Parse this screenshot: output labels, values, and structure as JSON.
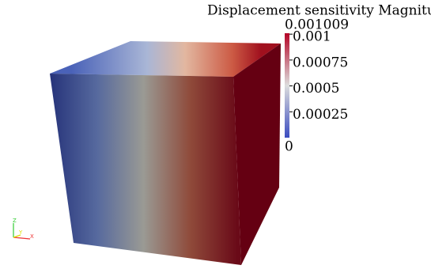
{
  "colorbar": {
    "title": "Displacement sensitivity Magnitude",
    "range": [
      0,
      0.001009
    ],
    "ticks": [
      0.00025,
      0.0005,
      0.00075,
      0.001
    ]
  },
  "axes_triad": {
    "x": "X",
    "y": "Y",
    "z": "Z"
  }
}
